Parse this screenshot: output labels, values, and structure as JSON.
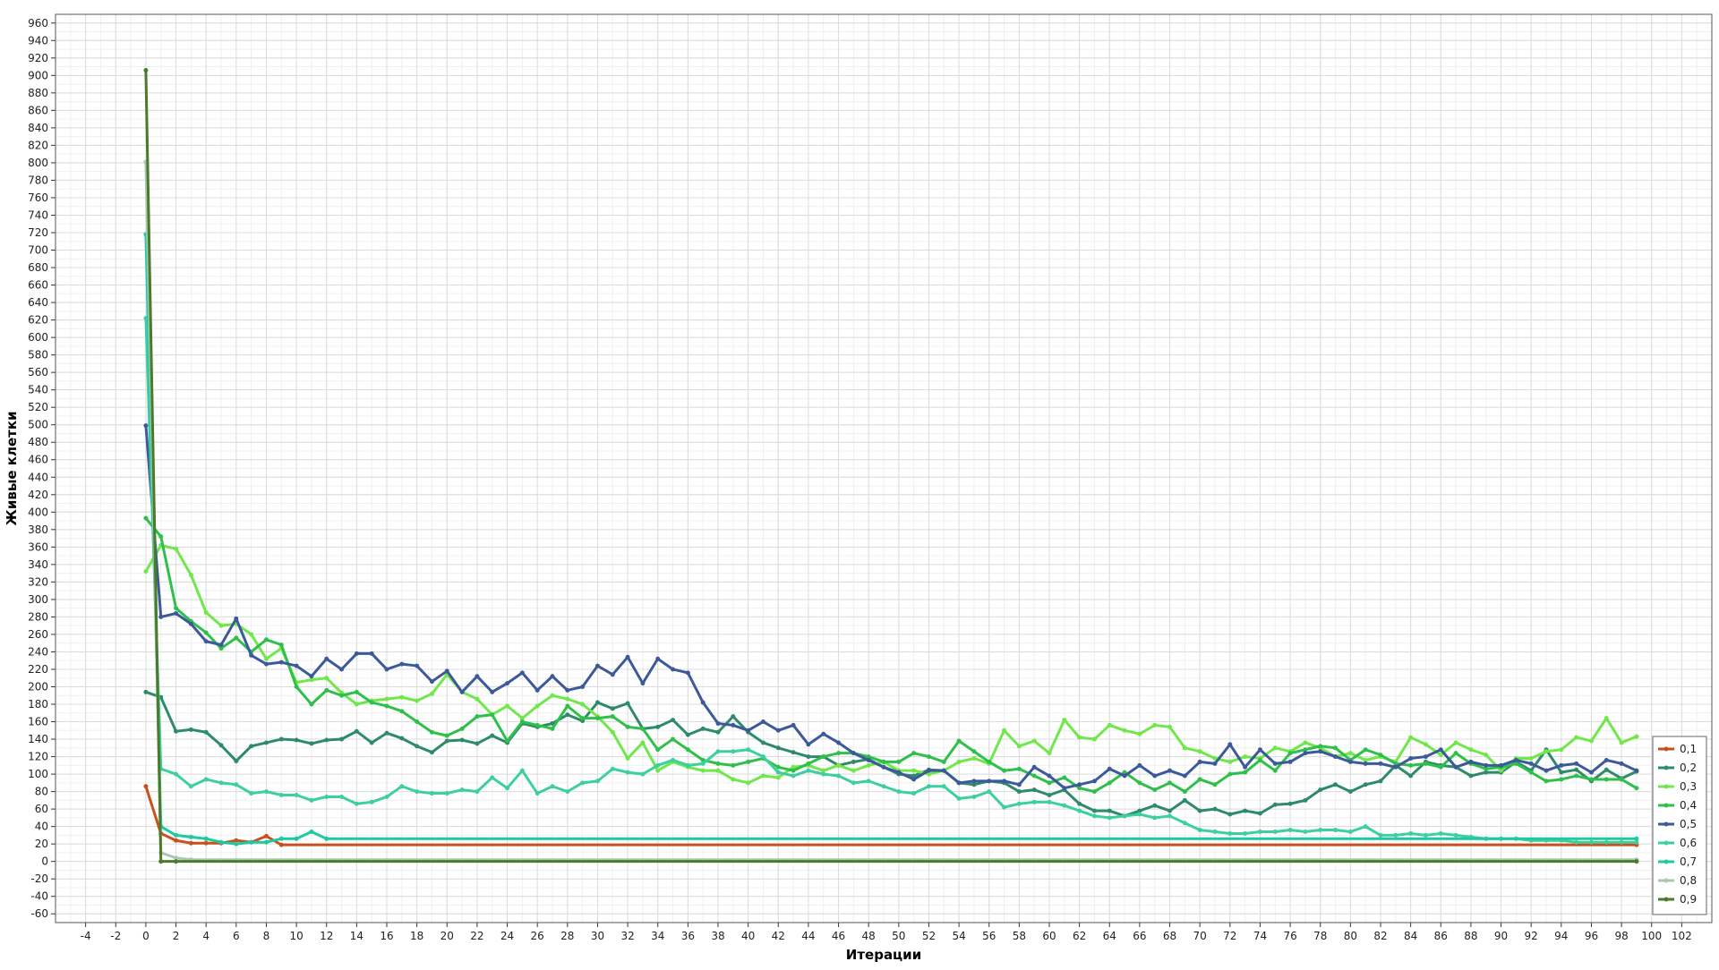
{
  "chart_data": {
    "type": "line",
    "title": "",
    "xlabel": "Итерации",
    "ylabel": "Живые клетки",
    "xlim": [
      -6,
      104
    ],
    "ylim": [
      -70,
      970
    ],
    "x_ticks": [
      -4,
      -2,
      0,
      2,
      4,
      6,
      8,
      10,
      12,
      14,
      16,
      18,
      20,
      22,
      24,
      26,
      28,
      30,
      32,
      34,
      36,
      38,
      40,
      42,
      44,
      46,
      48,
      50,
      52,
      54,
      56,
      58,
      60,
      62,
      64,
      66,
      68,
      70,
      72,
      74,
      76,
      78,
      80,
      82,
      84,
      86,
      88,
      90,
      92,
      94,
      96,
      98,
      100,
      102
    ],
    "x_tick_labels": [
      "-4",
      "-2",
      "0",
      "2",
      "4",
      "6",
      "8",
      "10",
      "12",
      "14",
      "16",
      "18",
      "20",
      "22",
      "24",
      "26",
      "28",
      "30",
      "32",
      "34",
      "36",
      "38",
      "40",
      "42",
      "44",
      "46",
      "48",
      "50",
      "52",
      "54",
      "56",
      "58",
      "60",
      "62",
      "64",
      "66",
      "68",
      "70",
      "72",
      "74",
      "76",
      "78",
      "80",
      "82",
      "84",
      "86",
      "88",
      "90",
      "92",
      "94",
      "96",
      "98",
      "100",
      "102"
    ],
    "y_ticks": [
      -60,
      -40,
      -20,
      0,
      20,
      40,
      60,
      80,
      100,
      120,
      140,
      160,
      180,
      200,
      220,
      240,
      260,
      280,
      300,
      320,
      340,
      360,
      380,
      400,
      420,
      440,
      460,
      480,
      500,
      520,
      540,
      560,
      580,
      600,
      620,
      640,
      660,
      680,
      700,
      720,
      740,
      760,
      780,
      800,
      820,
      840,
      860,
      880,
      900,
      920,
      940,
      960
    ],
    "y_tick_labels": [
      "-60",
      "-40",
      "-20",
      "0",
      "20",
      "40",
      "60",
      "80",
      "100",
      "120",
      "140",
      "160",
      "180",
      "200",
      "220",
      "240",
      "260",
      "280",
      "300",
      "320",
      "340",
      "360",
      "380",
      "400",
      "420",
      "440",
      "460",
      "480",
      "500",
      "520",
      "540",
      "560",
      "580",
      "600",
      "620",
      "640",
      "660",
      "680",
      "700",
      "720",
      "740",
      "760",
      "780",
      "800",
      "820",
      "840",
      "860",
      "880",
      "900",
      "920",
      "940",
      "960"
    ],
    "grid": true,
    "legend_position": "bottom-right",
    "series": [
      {
        "name": "0,1",
        "color": "#c8501e",
        "x": [
          0,
          1,
          2,
          3,
          4,
          5,
          6,
          7,
          8,
          9,
          99
        ],
        "y": [
          86,
          32,
          24,
          21,
          21,
          21,
          24,
          22,
          29,
          19,
          19
        ]
      },
      {
        "name": "0,2",
        "color": "#2e8b6a",
        "x": [
          0,
          1,
          2,
          3,
          4,
          5,
          6,
          7,
          8,
          9,
          10,
          11,
          12,
          13,
          14,
          15,
          16,
          17,
          18,
          19,
          20,
          21,
          22,
          23,
          24,
          25,
          26,
          27,
          28,
          29,
          30,
          31,
          32,
          33,
          34,
          35,
          36,
          37,
          38,
          39,
          40,
          41,
          42,
          43,
          44,
          45,
          46,
          47,
          48,
          49,
          50,
          51,
          52,
          53,
          54,
          55,
          56,
          57,
          58,
          59,
          60,
          61,
          62,
          63,
          64,
          65,
          66,
          67,
          68,
          69,
          70,
          71,
          72,
          73,
          74,
          75,
          76,
          77,
          78,
          79,
          80,
          81,
          82,
          83,
          84,
          85,
          86,
          87,
          88,
          89,
          90,
          91,
          92,
          93,
          94,
          95,
          96,
          97,
          98,
          99
        ],
        "y": [
          194,
          188,
          149,
          151,
          148,
          133,
          115,
          132,
          136,
          140,
          139,
          135,
          139,
          140,
          149,
          136,
          147,
          141,
          132,
          125,
          138,
          139,
          135,
          144,
          136,
          158,
          154,
          158,
          168,
          161,
          182,
          175,
          181,
          152,
          154,
          162,
          145,
          152,
          148,
          166,
          148,
          136,
          130,
          125,
          120,
          120,
          110,
          114,
          117,
          108,
          100,
          98,
          105,
          104,
          90,
          88,
          92,
          90,
          80,
          82,
          76,
          82,
          66,
          58,
          58,
          52,
          58,
          64,
          58,
          70,
          58,
          60,
          54,
          58,
          55,
          65,
          66,
          70,
          82,
          88,
          80,
          88,
          92,
          110,
          98,
          114,
          110,
          108,
          98,
          102,
          102,
          114,
          104,
          128,
          102,
          105,
          92,
          105,
          95,
          103
        ]
      },
      {
        "name": "0,3",
        "color": "#6fe84a",
        "x": [
          0,
          1,
          2,
          3,
          4,
          5,
          6,
          7,
          8,
          9,
          10,
          11,
          12,
          13,
          14,
          15,
          16,
          17,
          18,
          19,
          20,
          21,
          22,
          23,
          24,
          25,
          26,
          27,
          28,
          29,
          30,
          31,
          32,
          33,
          34,
          35,
          36,
          37,
          38,
          39,
          40,
          41,
          42,
          43,
          44,
          45,
          46,
          47,
          48,
          49,
          50,
          51,
          52,
          53,
          54,
          55,
          56,
          57,
          58,
          59,
          60,
          61,
          62,
          63,
          64,
          65,
          66,
          67,
          68,
          69,
          70,
          71,
          72,
          73,
          74,
          75,
          76,
          77,
          78,
          79,
          80,
          81,
          82,
          83,
          84,
          85,
          86,
          87,
          88,
          89,
          90,
          91,
          92,
          93,
          94,
          95,
          96,
          97,
          98,
          99
        ],
        "y": [
          332,
          362,
          358,
          328,
          285,
          270,
          272,
          260,
          232,
          244,
          205,
          208,
          210,
          193,
          180,
          184,
          186,
          188,
          184,
          192,
          214,
          194,
          186,
          168,
          178,
          164,
          178,
          190,
          186,
          180,
          166,
          148,
          118,
          136,
          104,
          114,
          108,
          104,
          104,
          94,
          90,
          98,
          96,
          108,
          110,
          104,
          110,
          104,
          110,
          114,
          104,
          104,
          100,
          104,
          114,
          118,
          112,
          150,
          132,
          138,
          124,
          162,
          142,
          140,
          156,
          150,
          146,
          156,
          154,
          130,
          126,
          118,
          114,
          120,
          118,
          130,
          126,
          136,
          130,
          120,
          124,
          116,
          120,
          114,
          142,
          134,
          122,
          136,
          128,
          122,
          104,
          118,
          118,
          126,
          128,
          142,
          138,
          164,
          136,
          143
        ]
      },
      {
        "name": "0,4",
        "color": "#2ec04a",
        "x": [
          0,
          1,
          2,
          3,
          4,
          5,
          6,
          7,
          8,
          9,
          10,
          11,
          12,
          13,
          14,
          15,
          16,
          17,
          18,
          19,
          20,
          21,
          22,
          23,
          24,
          25,
          26,
          27,
          28,
          29,
          30,
          31,
          32,
          33,
          34,
          35,
          36,
          37,
          38,
          39,
          40,
          41,
          42,
          43,
          44,
          45,
          46,
          47,
          48,
          49,
          50,
          51,
          52,
          53,
          54,
          55,
          56,
          57,
          58,
          59,
          60,
          61,
          62,
          63,
          64,
          65,
          66,
          67,
          68,
          69,
          70,
          71,
          72,
          73,
          74,
          75,
          76,
          77,
          78,
          79,
          80,
          81,
          82,
          83,
          84,
          85,
          86,
          87,
          88,
          89,
          90,
          91,
          92,
          93,
          94,
          95,
          96,
          97,
          98,
          99
        ],
        "y": [
          393,
          372,
          290,
          275,
          262,
          244,
          256,
          240,
          254,
          248,
          200,
          180,
          196,
          190,
          194,
          182,
          178,
          172,
          160,
          148,
          144,
          152,
          166,
          168,
          138,
          160,
          156,
          152,
          178,
          164,
          164,
          166,
          154,
          152,
          128,
          140,
          128,
          116,
          112,
          110,
          114,
          118,
          108,
          104,
          112,
          120,
          124,
          124,
          120,
          114,
          114,
          124,
          120,
          114,
          138,
          126,
          114,
          104,
          106,
          98,
          90,
          96,
          84,
          80,
          90,
          102,
          90,
          82,
          90,
          80,
          94,
          88,
          100,
          102,
          116,
          104,
          124,
          128,
          132,
          130,
          116,
          128,
          122,
          112,
          110,
          112,
          108,
          124,
          112,
          106,
          108,
          112,
          102,
          92,
          94,
          98,
          94,
          94,
          94,
          84
        ]
      },
      {
        "name": "0,5",
        "color": "#3c5a9a",
        "x": [
          0,
          1,
          2,
          3,
          4,
          5,
          6,
          7,
          8,
          9,
          10,
          11,
          12,
          13,
          14,
          15,
          16,
          17,
          18,
          19,
          20,
          21,
          22,
          23,
          24,
          25,
          26,
          27,
          28,
          29,
          30,
          31,
          32,
          33,
          34,
          35,
          36,
          37,
          38,
          39,
          40,
          41,
          42,
          43,
          44,
          45,
          46,
          47,
          48,
          49,
          50,
          51,
          52,
          53,
          54,
          55,
          56,
          57,
          58,
          59,
          60,
          61,
          62,
          63,
          64,
          65,
          66,
          67,
          68,
          69,
          70,
          71,
          72,
          73,
          74,
          75,
          76,
          77,
          78,
          79,
          80,
          81,
          82,
          83,
          84,
          85,
          86,
          87,
          88,
          89,
          90,
          91,
          92,
          93,
          94,
          95,
          96,
          97,
          98,
          99
        ],
        "y": [
          499,
          280,
          284,
          272,
          252,
          248,
          278,
          236,
          226,
          228,
          224,
          212,
          232,
          220,
          238,
          238,
          220,
          226,
          224,
          206,
          218,
          194,
          212,
          194,
          204,
          216,
          196,
          212,
          196,
          200,
          224,
          214,
          234,
          204,
          232,
          220,
          216,
          182,
          158,
          156,
          150,
          160,
          150,
          156,
          134,
          146,
          136,
          124,
          116,
          108,
          102,
          94,
          104,
          104,
          90,
          92,
          92,
          92,
          88,
          108,
          98,
          84,
          88,
          92,
          106,
          98,
          110,
          98,
          104,
          98,
          114,
          112,
          134,
          108,
          128,
          112,
          114,
          124,
          126,
          120,
          114,
          112,
          112,
          108,
          118,
          120,
          128,
          108,
          114,
          110,
          110,
          116,
          112,
          104,
          110,
          112,
          102,
          116,
          112,
          104
        ]
      },
      {
        "name": "0,6",
        "color": "#3dcfa0",
        "x": [
          0,
          1,
          2,
          3,
          4,
          5,
          6,
          7,
          8,
          9,
          10,
          11,
          12,
          13,
          14,
          15,
          16,
          17,
          18,
          19,
          20,
          21,
          22,
          23,
          24,
          25,
          26,
          27,
          28,
          29,
          30,
          31,
          32,
          33,
          34,
          35,
          36,
          37,
          38,
          39,
          40,
          41,
          42,
          43,
          44,
          45,
          46,
          47,
          48,
          49,
          50,
          51,
          52,
          53,
          54,
          55,
          56,
          57,
          58,
          59,
          60,
          61,
          62,
          63,
          64,
          65,
          66,
          67,
          68,
          69,
          70,
          71,
          72,
          73,
          74,
          75,
          76,
          77,
          78,
          79,
          80,
          81,
          82,
          83,
          84,
          85,
          86,
          87,
          88,
          89,
          90,
          91,
          92,
          93,
          94,
          95,
          96,
          97,
          98,
          99
        ],
        "y": [
          622,
          106,
          100,
          86,
          94,
          90,
          88,
          78,
          80,
          76,
          76,
          70,
          74,
          74,
          66,
          68,
          74,
          86,
          80,
          78,
          78,
          82,
          80,
          96,
          84,
          104,
          78,
          86,
          80,
          90,
          92,
          106,
          102,
          100,
          110,
          116,
          110,
          112,
          126,
          126,
          128,
          120,
          102,
          98,
          104,
          100,
          98,
          90,
          92,
          86,
          80,
          78,
          86,
          86,
          72,
          74,
          80,
          62,
          66,
          68,
          68,
          64,
          58,
          52,
          50,
          52,
          54,
          50,
          52,
          44,
          36,
          34,
          32,
          32,
          34,
          34,
          36,
          34,
          36,
          36,
          34,
          40,
          30,
          30,
          32,
          30,
          32,
          30,
          28,
          26,
          26,
          26,
          24,
          24,
          24,
          22,
          22,
          22,
          22,
          22
        ]
      },
      {
        "name": "0,7",
        "color": "#1fc9a0",
        "x": [
          0,
          1,
          2,
          3,
          4,
          5,
          6,
          7,
          8,
          9,
          10,
          11,
          12,
          99
        ],
        "y": [
          718,
          40,
          30,
          28,
          26,
          22,
          20,
          22,
          22,
          26,
          26,
          34,
          26,
          26
        ]
      },
      {
        "name": "0,8",
        "color": "#a8c8b4",
        "x": [
          0,
          1,
          2,
          3,
          99
        ],
        "y": [
          801,
          10,
          4,
          2,
          2
        ]
      },
      {
        "name": "0,9",
        "color": "#4a7a2a",
        "x": [
          0,
          1,
          2,
          99
        ],
        "y": [
          906,
          0,
          0,
          0
        ]
      }
    ]
  }
}
